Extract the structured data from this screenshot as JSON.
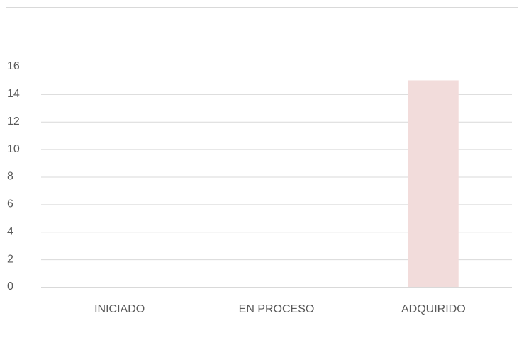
{
  "chart_data": {
    "type": "bar",
    "categories": [
      "INICIADO",
      "EN PROCESO",
      "ADQUIRIDO"
    ],
    "values": [
      0,
      0,
      15
    ],
    "color": "#f2dcdb",
    "ylim": [
      0,
      16
    ],
    "yticks": [
      0,
      2,
      4,
      6,
      8,
      10,
      12,
      14,
      16
    ],
    "grid": true
  }
}
